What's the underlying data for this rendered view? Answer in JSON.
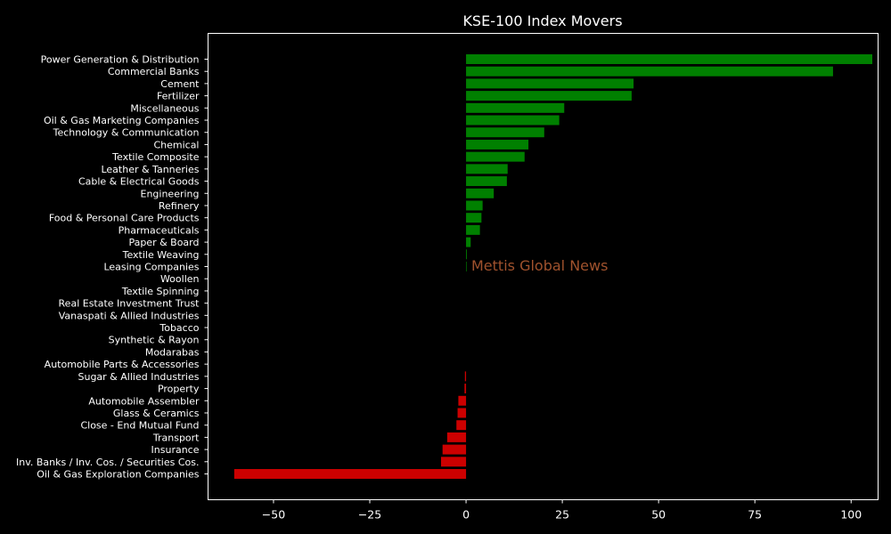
{
  "chart_data": {
    "type": "bar",
    "orientation": "horizontal",
    "title": "KSE-100 Index Movers",
    "xlabel": "",
    "ylabel": "",
    "xlim": [
      -67,
      107
    ],
    "xticks": [
      -50,
      -25,
      0,
      25,
      50,
      75,
      100
    ],
    "xtick_labels": [
      "−50",
      "−25",
      "0",
      "25",
      "50",
      "75",
      "100"
    ],
    "grid": false,
    "watermark": "Mettis Global News",
    "colors": {
      "background": "#000000",
      "positive": "#008000",
      "negative": "#cc0000",
      "axes": "#ffffff",
      "watermark": "#a0522d"
    },
    "categories": [
      "Power Generation & Distribution",
      "Commercial Banks",
      "Cement",
      "Fertilizer",
      "Miscellaneous",
      "Oil & Gas Marketing Companies",
      "Technology & Communication",
      "Chemical",
      "Textile Composite",
      "Leather & Tanneries",
      "Cable & Electrical Goods",
      "Engineering",
      "Refinery",
      "Food & Personal Care Products",
      "Pharmaceuticals",
      "Paper & Board",
      "Textile Weaving",
      "Leasing Companies",
      "Woollen",
      "Textile Spinning",
      "Real Estate Investment Trust",
      "Vanaspati & Allied Industries",
      "Tobacco",
      "Synthetic & Rayon",
      "Modarabas",
      "Automobile Parts & Accessories",
      "Sugar & Allied Industries",
      "Property",
      "Automobile Assembler",
      "Glass & Ceramics",
      "Close - End Mutual Fund",
      "Transport",
      "Insurance",
      "Inv. Banks / Inv. Cos. / Securities Cos.",
      "Oil & Gas Exploration Companies"
    ],
    "values": [
      105.5,
      95.3,
      43.5,
      43.0,
      25.5,
      24.2,
      20.3,
      16.2,
      15.2,
      10.8,
      10.6,
      7.2,
      4.3,
      4.0,
      3.6,
      1.2,
      0.2,
      0.15,
      0,
      0,
      0,
      0,
      0,
      0,
      0,
      0,
      -0.3,
      -0.4,
      -2.0,
      -2.2,
      -2.5,
      -4.9,
      -6.1,
      -6.5,
      -60.2
    ]
  }
}
